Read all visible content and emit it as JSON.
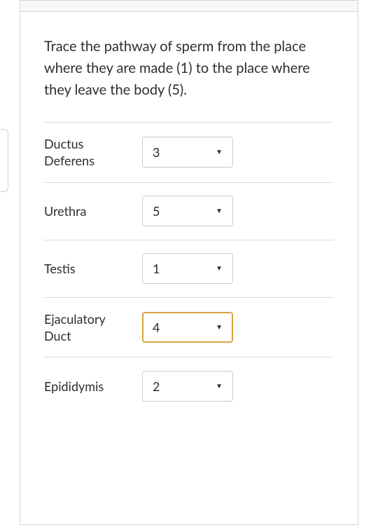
{
  "question_text": "Trace the pathway of sperm from the place where they are made (1) to the place where they leave the body (5).",
  "colors": {
    "border": "#cfd4d9",
    "row_divider": "#dadde1",
    "text": "#2b2f33",
    "select_border": "#c9ccd0",
    "active_border": "#d9a43b",
    "header_bg": "#f7f8f9",
    "background": "#ffffff"
  },
  "typography": {
    "question_fontsize": 20,
    "label_fontsize": 18,
    "select_fontsize": 18,
    "font_family": "Lato, Helvetica Neue, Arial, sans-serif"
  },
  "rows": [
    {
      "label": "Ductus Deferens",
      "value": "3",
      "active": false
    },
    {
      "label": "Urethra",
      "value": "5",
      "active": false
    },
    {
      "label": "Testis",
      "value": "1",
      "active": false
    },
    {
      "label": "Ejaculatory Duct",
      "value": "4",
      "active": true
    },
    {
      "label": "Epididymis",
      "value": "2",
      "active": false
    }
  ],
  "caret_glyph": "▼"
}
